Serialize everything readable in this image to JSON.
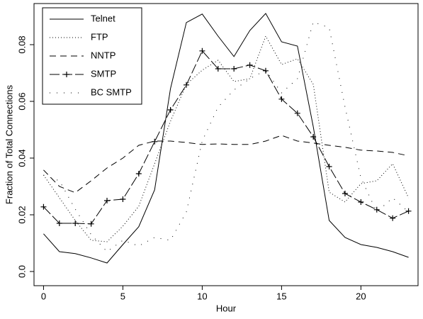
{
  "chart_data": {
    "type": "line",
    "x_label": "Hour",
    "y_label": "Fraction of Total Connections",
    "x": [
      0,
      1,
      2,
      3,
      4,
      5,
      6,
      7,
      8,
      9,
      10,
      11,
      12,
      13,
      14,
      15,
      16,
      17,
      18,
      19,
      20,
      21,
      22,
      23
    ],
    "series": [
      {
        "name": "Telnet",
        "color": "#000000",
        "dash": "none",
        "values": [
          0.0133,
          0.007,
          0.0063,
          0.0048,
          0.003,
          0.0095,
          0.0158,
          0.0288,
          0.0645,
          0.0878,
          0.0908,
          0.083,
          0.0758,
          0.085,
          0.091,
          0.081,
          0.0795,
          0.051,
          0.018,
          0.012,
          0.0095,
          0.0085,
          0.007,
          0.005
        ]
      },
      {
        "name": "FTP",
        "color": "#000000",
        "dash": "1,3",
        "values": [
          0.034,
          0.026,
          0.018,
          0.011,
          0.0105,
          0.016,
          0.023,
          0.038,
          0.053,
          0.066,
          0.071,
          0.0745,
          0.067,
          0.068,
          0.083,
          0.073,
          0.075,
          0.066,
          0.028,
          0.0245,
          0.031,
          0.032,
          0.038,
          0.026
        ]
      },
      {
        "name": "NNTP",
        "color": "#000000",
        "dash": "9,6",
        "values": [
          0.0358,
          0.03,
          0.0278,
          0.032,
          0.0365,
          0.04,
          0.0445,
          0.046,
          0.046,
          0.0455,
          0.0448,
          0.045,
          0.0448,
          0.0448,
          0.046,
          0.048,
          0.046,
          0.0453,
          0.0445,
          0.0438,
          0.0428,
          0.0425,
          0.042,
          0.0408
        ]
      },
      {
        "name": "SMTP",
        "color": "#000000",
        "dash": "14,4",
        "marker": "+",
        "values": [
          0.0228,
          0.017,
          0.017,
          0.0168,
          0.025,
          0.0255,
          0.0345,
          0.0458,
          0.057,
          0.0658,
          0.0778,
          0.0715,
          0.0715,
          0.0728,
          0.0708,
          0.0608,
          0.0558,
          0.0475,
          0.037,
          0.0275,
          0.0245,
          0.0218,
          0.0188,
          0.0213
        ]
      },
      {
        "name": "BC SMTP",
        "color": "#000000",
        "dash": "1,9",
        "values": [
          0.034,
          0.032,
          0.022,
          0.013,
          0.007,
          0.011,
          0.009,
          0.012,
          0.011,
          0.021,
          0.046,
          0.058,
          0.064,
          0.068,
          0.071,
          0.063,
          0.068,
          0.088,
          0.086,
          0.058,
          0.033,
          0.021,
          0.026,
          0.021
        ]
      }
    ],
    "xlim": [
      -0.6,
      23.6
    ],
    "ylim": [
      -0.005,
      0.0945
    ],
    "xticks": [
      0,
      5,
      10,
      15,
      20
    ],
    "yticks": [
      {
        "value": 0,
        "label": "0.0"
      },
      0.02,
      0.04,
      0.06,
      0.08
    ],
    "legend": "upper left"
  }
}
